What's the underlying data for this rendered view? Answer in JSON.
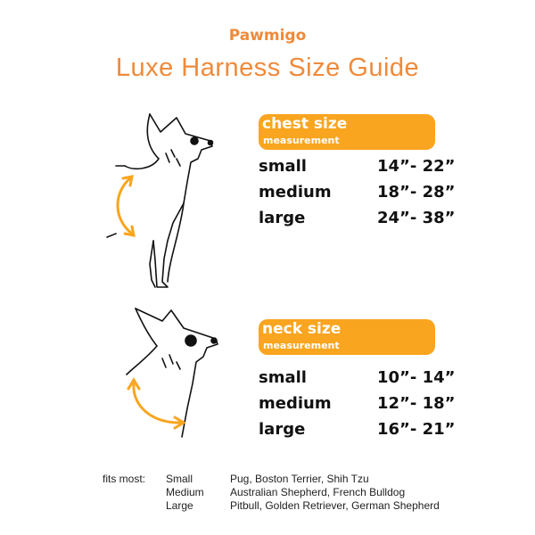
{
  "brand": "Pawmigo",
  "title": "Luxe Harness Size Guide",
  "colors": {
    "accent": "#ef8a3a",
    "box": "#f9a51f"
  },
  "chest": {
    "heading": "chest size",
    "subheading": "measurement",
    "rows": [
      {
        "size": "small",
        "range": "14”- 22”"
      },
      {
        "size": "medium",
        "range": "18”- 28”"
      },
      {
        "size": "large",
        "range": "24”- 38”"
      }
    ]
  },
  "neck": {
    "heading": "neck size",
    "subheading": "measurement",
    "rows": [
      {
        "size": "small",
        "range": "10”- 14”"
      },
      {
        "size": "medium",
        "range": "12”- 18”"
      },
      {
        "size": "large",
        "range": "16”- 21”"
      }
    ]
  },
  "fits": {
    "label": "fits most:",
    "rows": [
      {
        "size": "Small",
        "breeds": "Pug, Boston Terrier, Shih Tzu"
      },
      {
        "size": "Medium",
        "breeds": "Australian Shepherd, French Bulldog"
      },
      {
        "size": "Large",
        "breeds": "Pitbull, Golden Retriever, German Shepherd"
      }
    ]
  },
  "icons": {
    "chest_illustration": "dog-chest-measure",
    "neck_illustration": "dog-neck-measure"
  }
}
